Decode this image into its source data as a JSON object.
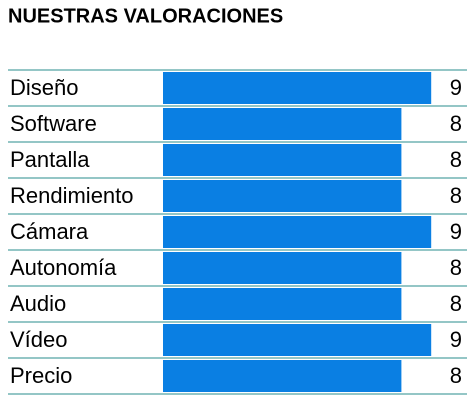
{
  "chart_data": {
    "type": "bar",
    "orientation": "horizontal",
    "title": "NUESTRAS VALORACIONES",
    "categories": [
      "Diseño",
      "Software",
      "Pantalla",
      "Rendimiento",
      "Cámara",
      "Autonomía",
      "Audio",
      "Vídeo",
      "Precio"
    ],
    "values": [
      9,
      8,
      8,
      8,
      9,
      8,
      8,
      9,
      8
    ],
    "color": "#0a7fe3"
  }
}
